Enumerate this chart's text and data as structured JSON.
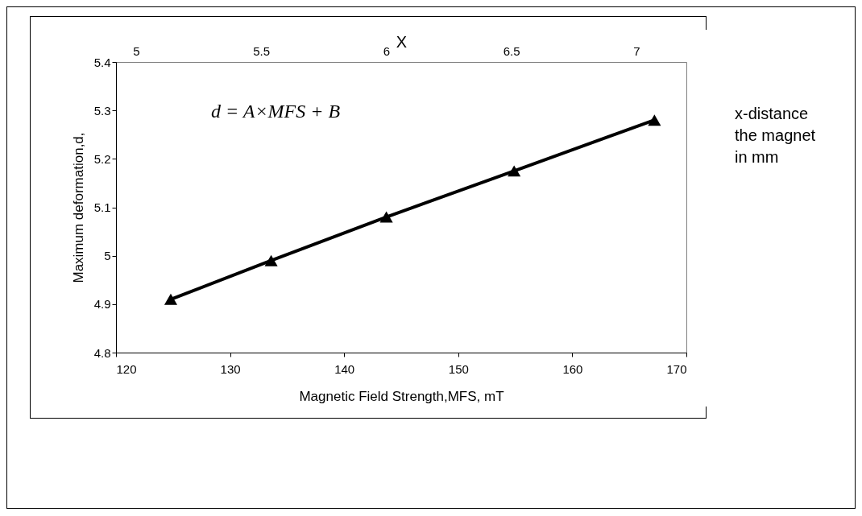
{
  "chart_data": {
    "type": "line",
    "xlabel": "Magnetic Field Strength,MFS, mT",
    "ylabel": "Maximum deformation,d,",
    "x2label": "X",
    "x": [
      124.8,
      133.6,
      143.7,
      154.9,
      167.2
    ],
    "series": [
      {
        "color": "#000000",
        "values": [
          4.91,
          4.99,
          5.08,
          5.175,
          5.28
        ]
      }
    ],
    "xlim": [
      120,
      170
    ],
    "xticks": [
      120,
      130,
      140,
      150,
      160,
      170
    ],
    "ylim": [
      4.8,
      5.4
    ],
    "yticks": [
      4.8,
      4.9,
      5,
      5.1,
      5.2,
      5.3,
      5.4
    ],
    "x2lim": [
      4.92,
      7.2
    ],
    "x2ticks": [
      5,
      5.5,
      6,
      6.5,
      7
    ],
    "annotations": [
      "d = A×MFS + B",
      "x-distance\nthe magnet\nin mm"
    ],
    "marker": "triangle",
    "line_style": "solid",
    "grid": false
  }
}
